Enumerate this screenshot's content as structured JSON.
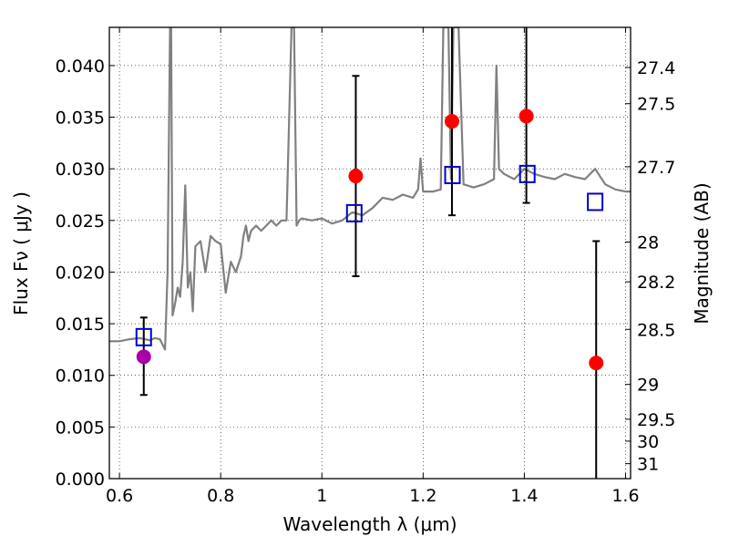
{
  "chart_data": {
    "type": "line",
    "xlabel": "Wavelength  λ (μm)",
    "ylabel": "Flux  Fν  ( μJy )",
    "y2label": "Magnitude (AB)",
    "xlim": [
      0.58,
      1.61
    ],
    "ylim": [
      0.0,
      0.0437
    ],
    "grid": true,
    "x_ticks": [
      0.6,
      0.8,
      1.0,
      1.2,
      1.4,
      1.6
    ],
    "x_tick_labels": [
      "0.6",
      "0.8",
      "1",
      "1.2",
      "1.4",
      "1.6"
    ],
    "y_ticks": [
      0.0,
      0.005,
      0.01,
      0.015,
      0.02,
      0.025,
      0.03,
      0.035,
      0.04
    ],
    "y_tick_labels": [
      "0.000",
      "0.005",
      "0.010",
      "0.015",
      "0.020",
      "0.025",
      "0.030",
      "0.035",
      "0.040"
    ],
    "mag_ticks": [
      27.4,
      27.5,
      27.7,
      28,
      28.2,
      28.5,
      29,
      29.5,
      30,
      31
    ],
    "mag_tick_labels": [
      "27.4",
      "27.5",
      "27.7",
      "28",
      "28.2",
      "28.5",
      "29",
      "29.5",
      "30",
      "31"
    ],
    "template_spectrum": {
      "color": "#808080",
      "x": [
        0.58,
        0.6,
        0.62,
        0.64,
        0.66,
        0.67,
        0.68,
        0.69,
        0.695,
        0.7,
        0.702,
        0.705,
        0.71,
        0.715,
        0.72,
        0.725,
        0.73,
        0.735,
        0.74,
        0.745,
        0.75,
        0.76,
        0.77,
        0.78,
        0.79,
        0.8,
        0.81,
        0.82,
        0.83,
        0.84,
        0.845,
        0.85,
        0.855,
        0.86,
        0.87,
        0.88,
        0.89,
        0.9,
        0.91,
        0.92,
        0.93,
        0.94,
        0.945,
        0.95,
        0.955,
        0.96,
        0.98,
        1.0,
        1.02,
        1.04,
        1.06,
        1.08,
        1.1,
        1.12,
        1.14,
        1.16,
        1.18,
        1.19,
        1.195,
        1.2,
        1.22,
        1.235,
        1.24,
        1.245,
        1.25,
        1.255,
        1.26,
        1.265,
        1.27,
        1.28,
        1.3,
        1.32,
        1.34,
        1.345,
        1.35,
        1.36,
        1.38,
        1.4,
        1.42,
        1.44,
        1.46,
        1.48,
        1.5,
        1.52,
        1.54,
        1.56,
        1.58,
        1.6,
        1.61
      ],
      "y": [
        0.0133,
        0.0133,
        0.0135,
        0.0136,
        0.0134,
        0.0136,
        0.0135,
        0.0125,
        0.02,
        0.0437,
        0.0437,
        0.0158,
        0.017,
        0.0185,
        0.0176,
        0.021,
        0.0284,
        0.0185,
        0.02,
        0.0162,
        0.0225,
        0.023,
        0.02,
        0.0235,
        0.023,
        0.0227,
        0.018,
        0.021,
        0.02,
        0.0215,
        0.0235,
        0.0245,
        0.023,
        0.024,
        0.0245,
        0.024,
        0.0245,
        0.025,
        0.0245,
        0.025,
        0.025,
        0.0437,
        0.0437,
        0.0245,
        0.025,
        0.0252,
        0.025,
        0.0252,
        0.0247,
        0.025,
        0.0258,
        0.0255,
        0.0262,
        0.0272,
        0.027,
        0.0275,
        0.0272,
        0.028,
        0.031,
        0.0278,
        0.0278,
        0.028,
        0.0437,
        0.0437,
        0.0437,
        0.029,
        0.0437,
        0.0437,
        0.0437,
        0.0285,
        0.0282,
        0.0285,
        0.029,
        0.04,
        0.03,
        0.0295,
        0.029,
        0.03,
        0.0295,
        0.0292,
        0.029,
        0.0295,
        0.0292,
        0.029,
        0.03,
        0.0285,
        0.028,
        0.0278,
        0.0278
      ]
    },
    "photometry_red": {
      "color": "#ff0000",
      "points": [
        {
          "x": 1.067,
          "y": 0.0293,
          "ylo": 0.0196,
          "yhi": 0.039
        },
        {
          "x": 1.257,
          "y": 0.0346,
          "ylo": 0.0255,
          "yhi": 0.0437
        },
        {
          "x": 1.404,
          "y": 0.0351,
          "ylo": 0.0267,
          "yhi": 0.0437
        },
        {
          "x": 1.542,
          "y": 0.0112,
          "ylo": 0.0,
          "yhi": 0.023
        }
      ]
    },
    "photometry_magenta": {
      "color": "#aa00aa",
      "points": [
        {
          "x": 0.648,
          "y": 0.0118,
          "ylo": 0.0081,
          "yhi": 0.0156
        }
      ]
    },
    "model_squares": {
      "color": "#0000cc",
      "points": [
        {
          "x": 0.648,
          "y": 0.0137
        },
        {
          "x": 1.064,
          "y": 0.0257
        },
        {
          "x": 1.258,
          "y": 0.0294
        },
        {
          "x": 1.406,
          "y": 0.0295
        },
        {
          "x": 1.54,
          "y": 0.0268
        }
      ]
    }
  }
}
